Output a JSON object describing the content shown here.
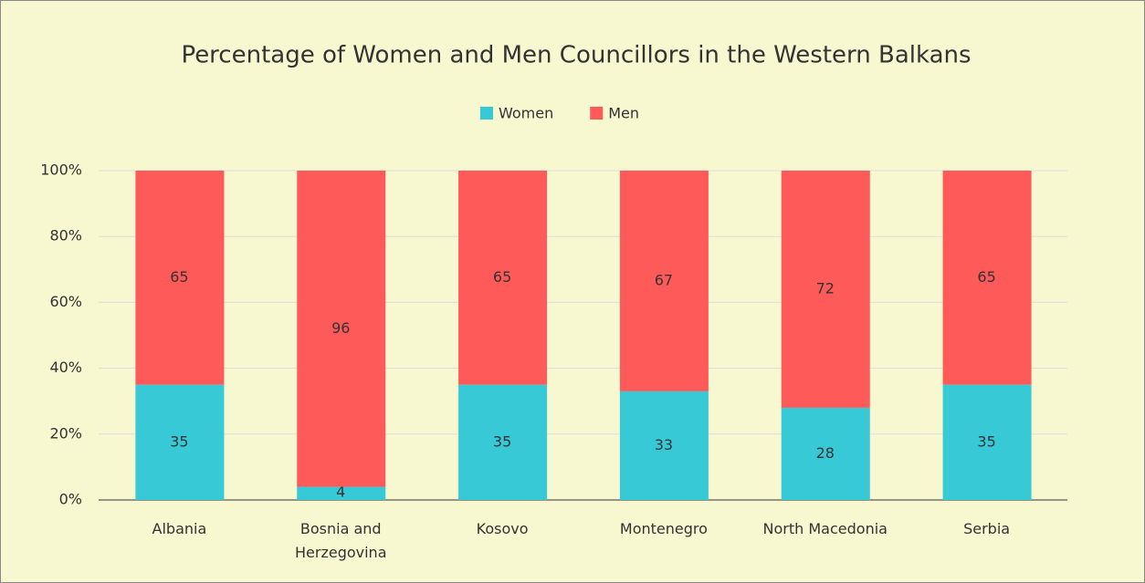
{
  "chart_data": {
    "type": "bar",
    "stacked": true,
    "title": "Percentage of Women and Men Councillors in the Western Balkans",
    "categories": [
      "Albania",
      "Bosnia and Herzegovina",
      "Kosovo",
      "Montenegro",
      "North Macedonia",
      "Serbia"
    ],
    "series": [
      {
        "name": "Women",
        "color": "#38c9d6",
        "values": [
          35,
          4,
          35,
          33,
          28,
          35
        ]
      },
      {
        "name": "Men",
        "color": "#fe5a5a",
        "values": [
          65,
          96,
          65,
          67,
          72,
          65
        ]
      }
    ],
    "ylim": [
      0,
      100
    ],
    "yticks": [
      {
        "value": 0,
        "label": "0%"
      },
      {
        "value": 20,
        "label": "20%"
      },
      {
        "value": 40,
        "label": "40%"
      },
      {
        "value": 60,
        "label": "60%"
      },
      {
        "value": 80,
        "label": "80%"
      },
      {
        "value": 100,
        "label": "100%"
      }
    ],
    "grid": true,
    "legend": "top"
  }
}
